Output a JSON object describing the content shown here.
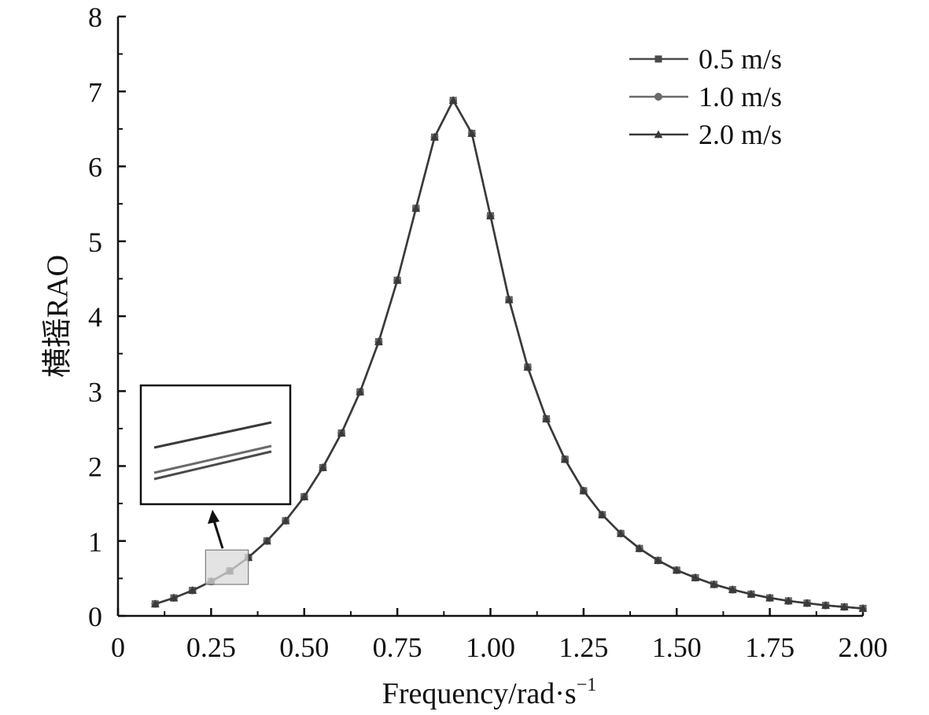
{
  "chart_data": {
    "type": "line",
    "xlabel": "Frequency/rad·s",
    "xlabel_sup": "−1",
    "ylabel": "横摇RAO",
    "xlim": [
      0,
      2.0
    ],
    "ylim": [
      0,
      8
    ],
    "x_ticks": [
      "0",
      "0.25",
      "0.50",
      "0.75",
      "1.00",
      "1.25",
      "1.50",
      "1.75",
      "2.00"
    ],
    "y_ticks": [
      "0",
      "1",
      "2",
      "3",
      "4",
      "5",
      "6",
      "7",
      "8"
    ],
    "x": [
      0.1,
      0.15,
      0.2,
      0.25,
      0.3,
      0.35,
      0.4,
      0.45,
      0.5,
      0.55,
      0.6,
      0.65,
      0.7,
      0.75,
      0.8,
      0.85,
      0.9,
      0.95,
      1.0,
      1.05,
      1.1,
      1.15,
      1.2,
      1.25,
      1.3,
      1.35,
      1.4,
      1.45,
      1.5,
      1.55,
      1.6,
      1.65,
      1.7,
      1.75,
      1.8,
      1.85,
      1.9,
      1.95,
      2.0
    ],
    "series": [
      {
        "name": "0.5 m/s",
        "marker": "square",
        "color": "#4a4a4a",
        "values": [
          0.16,
          0.24,
          0.34,
          0.46,
          0.6,
          0.78,
          1.0,
          1.27,
          1.59,
          1.98,
          2.44,
          2.99,
          3.66,
          4.48,
          5.44,
          6.39,
          6.88,
          6.44,
          5.34,
          4.22,
          3.32,
          2.63,
          2.09,
          1.67,
          1.35,
          1.1,
          0.9,
          0.74,
          0.61,
          0.51,
          0.42,
          0.35,
          0.29,
          0.24,
          0.2,
          0.17,
          0.14,
          0.12,
          0.1
        ]
      },
      {
        "name": "1.0 m/s",
        "marker": "circle",
        "color": "#6a6a6a",
        "values": [
          0.16,
          0.24,
          0.34,
          0.46,
          0.6,
          0.78,
          1.0,
          1.27,
          1.59,
          1.98,
          2.44,
          2.99,
          3.66,
          4.48,
          5.44,
          6.39,
          6.88,
          6.44,
          5.34,
          4.22,
          3.32,
          2.63,
          2.09,
          1.67,
          1.35,
          1.1,
          0.9,
          0.74,
          0.61,
          0.51,
          0.42,
          0.35,
          0.29,
          0.24,
          0.2,
          0.17,
          0.14,
          0.12,
          0.1
        ]
      },
      {
        "name": "2.0 m/s",
        "marker": "triangle",
        "color": "#3a3a3a",
        "values": [
          0.16,
          0.24,
          0.34,
          0.46,
          0.6,
          0.78,
          1.0,
          1.27,
          1.59,
          1.98,
          2.44,
          2.99,
          3.66,
          4.48,
          5.44,
          6.39,
          6.88,
          6.44,
          5.34,
          4.22,
          3.32,
          2.63,
          2.09,
          1.67,
          1.35,
          1.1,
          0.9,
          0.74,
          0.61,
          0.51,
          0.42,
          0.35,
          0.29,
          0.24,
          0.2,
          0.17,
          0.14,
          0.12,
          0.1
        ]
      }
    ],
    "legend_position": "top-right",
    "grid": false,
    "inset": {
      "zoom_region_x": [
        0.235,
        0.35
      ],
      "zoom_region_y": [
        0.42,
        0.88
      ],
      "line_colors": [
        "#3a3a3a",
        "#6a6a6a",
        "#4a4a4a"
      ]
    }
  }
}
